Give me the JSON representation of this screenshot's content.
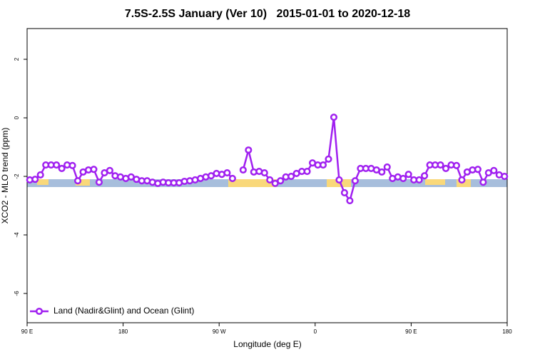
{
  "chart_data": {
    "type": "line",
    "title": "7.5S-2.5S January (Ver 10)   2015-01-01 to 2020-12-18",
    "x_label": "Longitude (deg E)",
    "y_label": "XCO2 - MLO trend (ppm)",
    "xlim": [
      90,
      540
    ],
    "ylim": [
      -7,
      3.05
    ],
    "xticks": [
      {
        "value": 90,
        "label": "90 E"
      },
      180,
      {
        "value": 270,
        "label": "90 W"
      },
      {
        "value": 360,
        "label": "0"
      },
      {
        "value": 450,
        "label": "90 E"
      },
      {
        "value": 540,
        "label": "180"
      }
    ],
    "yticks": [
      2,
      0,
      -2,
      -4,
      -6
    ],
    "legend": "bottom-left",
    "x": [
      92.5,
      97.5,
      102.5,
      107.5,
      112.5,
      117.5,
      122.5,
      127.5,
      132.5,
      137.5,
      142.5,
      147.5,
      152.5,
      157.5,
      162.5,
      167.5,
      172.5,
      177.5,
      182.5,
      187.5,
      192.5,
      197.5,
      202.5,
      207.5,
      212.5,
      217.5,
      222.5,
      227.5,
      232.5,
      237.5,
      242.5,
      247.5,
      252.5,
      257.5,
      262.5,
      267.5,
      272.5,
      277.5,
      282.5,
      287.5,
      292.5,
      297.5,
      302.5,
      307.5,
      312.5,
      317.5,
      322.5,
      327.5,
      332.5,
      337.5,
      342.5,
      347.5,
      352.5,
      357.5,
      362.5,
      367.5,
      372.5,
      377.5,
      382.5,
      387.5,
      392.5,
      397.5,
      402.5,
      407.5,
      412.5,
      417.5,
      422.5,
      427.5,
      432.5,
      437.5,
      442.5,
      447.5,
      452.5,
      457.5,
      462.5,
      467.5,
      472.5,
      477.5,
      482.5,
      487.5,
      492.5,
      497.5,
      502.5,
      507.5,
      512.5,
      517.5,
      522.5,
      527.5,
      532.5,
      537.5
    ],
    "series": [
      {
        "name": "Land (Nadir&Glint) and Ocean (Glint)",
        "color": "#a020f0",
        "values": [
          -2.12,
          -2.1,
          -1.95,
          -1.61,
          -1.61,
          -1.61,
          -1.73,
          -1.61,
          -1.63,
          -2.15,
          -1.85,
          -1.78,
          -1.76,
          -2.2,
          -1.88,
          -1.8,
          -1.98,
          -2.02,
          -2.07,
          -2.02,
          -2.1,
          -2.15,
          -2.15,
          -2.2,
          -2.24,
          -2.2,
          -2.22,
          -2.22,
          -2.22,
          -2.17,
          -2.15,
          -2.12,
          -2.07,
          -2.02,
          -1.98,
          -1.9,
          -1.93,
          -1.88,
          -2.07,
          null,
          -1.78,
          -1.1,
          -1.85,
          -1.83,
          -1.88,
          -2.12,
          -2.24,
          -2.15,
          -2.02,
          -2,
          -1.9,
          -1.83,
          -1.83,
          -1.54,
          -1.61,
          -1.61,
          -1.41,
          0.02,
          -2.12,
          -2.56,
          -2.83,
          -2.15,
          -1.73,
          -1.73,
          -1.73,
          -1.78,
          -1.85,
          -1.68,
          -2.07,
          -2.02,
          -2.07,
          -1.93,
          -2.12,
          -2.12,
          -1.98,
          -1.61,
          -1.61,
          -1.61,
          -1.73,
          -1.61,
          -1.63,
          -2.12,
          -1.85,
          -1.78,
          -1.76,
          -2.2,
          -1.88,
          -1.8,
          -1.95,
          -2
        ]
      }
    ]
  }
}
